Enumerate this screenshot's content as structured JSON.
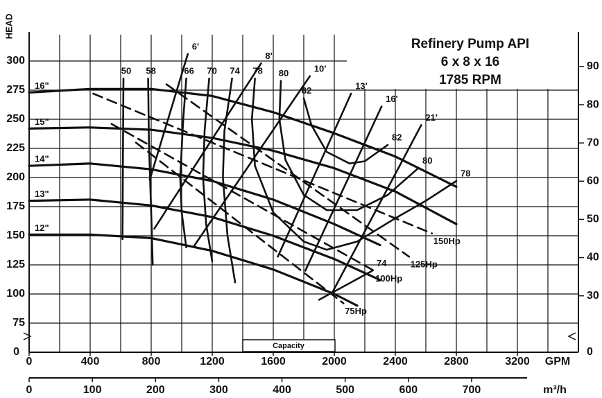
{
  "chart_data": {
    "type": "line",
    "title": [
      "Refinery Pump API",
      "6 x 8 x 16",
      "1785 RPM"
    ],
    "ylabel": "HEAD",
    "x_unit": "GPM",
    "x2_unit": "m³/h",
    "y_zero_label": "0",
    "y2_zero_label": "0",
    "annotation": "Capacity",
    "xlim": [
      0,
      3600
    ],
    "xticks": [
      0,
      400,
      800,
      1200,
      1600,
      2000,
      2400,
      2800,
      3200
    ],
    "xgrid": [
      0,
      200,
      400,
      600,
      800,
      1000,
      1200,
      1400,
      1600,
      1800,
      2000,
      2200,
      2400,
      2600,
      2800,
      3000,
      3200,
      3400,
      3600
    ],
    "x2lim": [
      0,
      869
    ],
    "x2ticks": [
      0,
      100,
      200,
      300,
      400,
      500,
      600,
      700
    ],
    "ylim": [
      50,
      325
    ],
    "yticks": [
      75,
      100,
      125,
      150,
      175,
      200,
      225,
      250,
      275,
      300
    ],
    "y2lim": [
      15.24,
      99.06
    ],
    "y2ticks": [
      30,
      40,
      50,
      60,
      70,
      80,
      90
    ],
    "grid": true,
    "color": "#111111",
    "series": [
      {
        "name": "16\"",
        "kind": "impeller",
        "label_at": "start",
        "x": [
          0,
          400,
          800,
          1200,
          1600,
          2000,
          2400,
          2800
        ],
        "values": [
          273,
          276,
          276,
          270,
          256,
          238,
          218,
          192
        ]
      },
      {
        "name": "15\"",
        "kind": "impeller",
        "label_at": "start",
        "x": [
          0,
          400,
          800,
          1200,
          1600,
          2000,
          2400,
          2800
        ],
        "values": [
          242,
          243,
          241,
          234,
          223,
          208,
          188,
          160
        ]
      },
      {
        "name": "14\"",
        "kind": "impeller",
        "label_at": "start",
        "x": [
          0,
          400,
          800,
          1200,
          1600,
          2000,
          2300
        ],
        "values": [
          210,
          212,
          207,
          197,
          181,
          160,
          142
        ]
      },
      {
        "name": "13\"",
        "kind": "impeller",
        "label_at": "start",
        "x": [
          0,
          400,
          800,
          1200,
          1600,
          2000,
          2300
        ],
        "values": [
          180,
          181,
          176,
          166,
          150,
          130,
          112
        ]
      },
      {
        "name": "12\"",
        "kind": "impeller",
        "label_at": "start",
        "x": [
          0,
          400,
          800,
          1200,
          1600,
          2000,
          2150
        ],
        "values": [
          151,
          151,
          148,
          137,
          121,
          100,
          90
        ]
      },
      {
        "name": "50",
        "kind": "efficiency",
        "label_at": "start",
        "x": [
          618,
          615,
          612
        ],
        "values": [
          285,
          220,
          147
        ]
      },
      {
        "name": "58",
        "kind": "efficiency",
        "label_at": "start",
        "x": [
          780,
          785,
          800,
          810
        ],
        "values": [
          285,
          230,
          170,
          125
        ]
      },
      {
        "name": "66",
        "kind": "efficiency",
        "label_at": "start",
        "x": [
          1030,
          1010,
          990,
          1000,
          1030
        ],
        "values": [
          285,
          250,
          200,
          170,
          140
        ]
      },
      {
        "name": "70",
        "kind": "efficiency",
        "label_at": "start",
        "x": [
          1180,
          1150,
          1140,
          1160,
          1200
        ],
        "values": [
          285,
          240,
          200,
          160,
          128
        ]
      },
      {
        "name": "74",
        "kind": "efficiency",
        "label_at": "start",
        "x": [
          1330,
          1280,
          1270,
          1300,
          1350
        ],
        "values": [
          285,
          240,
          200,
          150,
          110
        ]
      },
      {
        "name": "74",
        "kind": "efficiency",
        "label_at": "end",
        "x": [
          1900,
          2250
        ],
        "values": [
          95,
          120
        ]
      },
      {
        "name": "78",
        "kind": "efficiency",
        "label_at": "both",
        "x": [
          1480,
          1460,
          1480,
          1600,
          1800,
          1950,
          2150,
          2400,
          2600,
          2800
        ],
        "values": [
          285,
          250,
          210,
          170,
          145,
          138,
          145,
          165,
          180,
          197
        ]
      },
      {
        "name": "80",
        "kind": "efficiency",
        "label_at": "both",
        "x": [
          1650,
          1640,
          1680,
          1800,
          1950,
          2150,
          2350,
          2550
        ],
        "values": [
          283,
          250,
          215,
          185,
          172,
          172,
          185,
          208
        ]
      },
      {
        "name": "82",
        "kind": "efficiency",
        "label_at": "both",
        "x": [
          1800,
          1850,
          1950,
          2100,
          2200,
          2350
        ],
        "values": [
          268,
          245,
          222,
          212,
          214,
          228
        ]
      },
      {
        "name": "6'",
        "kind": "npsh",
        "label_at": "end",
        "x": [
          790,
          1040
        ],
        "values": [
          198,
          306
        ]
      },
      {
        "name": "8'",
        "kind": "npsh",
        "label_at": "end",
        "x": [
          820,
          1520
        ],
        "values": [
          156,
          298
        ]
      },
      {
        "name": "10'",
        "kind": "npsh",
        "label_at": "end",
        "x": [
          1080,
          1840
        ],
        "values": [
          141,
          287
        ]
      },
      {
        "name": "13'",
        "kind": "npsh",
        "label_at": "end",
        "x": [
          1630,
          2110
        ],
        "values": [
          132,
          272
        ]
      },
      {
        "name": "16'",
        "kind": "npsh",
        "label_at": "end",
        "x": [
          1810,
          2310
        ],
        "values": [
          120,
          261
        ]
      },
      {
        "name": "21'",
        "kind": "npsh",
        "label_at": "end",
        "x": [
          1990,
          2570
        ],
        "values": [
          102,
          245
        ]
      },
      {
        "name": "150Hp",
        "kind": "power",
        "label_at": "end",
        "x": [
          420,
          2640
        ],
        "values": [
          272,
          152
        ]
      },
      {
        "name": "125Hp",
        "kind": "power",
        "label_at": "end",
        "x": [
          900,
          2490
        ],
        "values": [
          280,
          132
        ]
      },
      {
        "name": "100Hp",
        "kind": "power",
        "label_at": "end",
        "x": [
          540,
          2260
        ],
        "values": [
          246,
          120
        ]
      },
      {
        "name": "75Hp",
        "kind": "power",
        "label_at": "end",
        "x": [
          700,
          2060
        ],
        "values": [
          230,
          92
        ]
      }
    ]
  }
}
